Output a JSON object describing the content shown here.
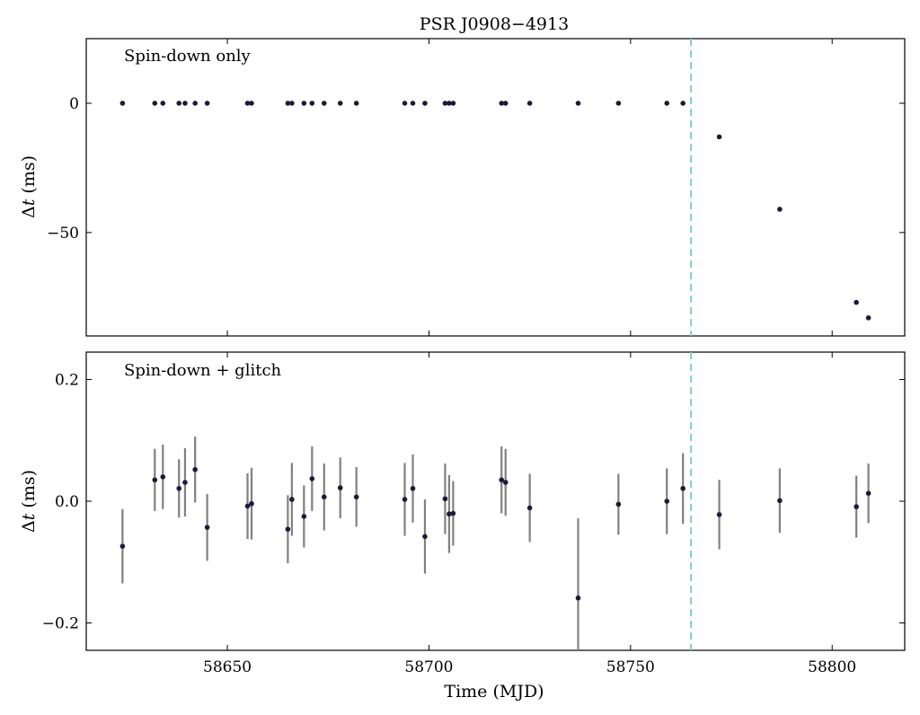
{
  "title": "PSR J0908−4913",
  "colors": {
    "points": "#1a1a3a",
    "errorbars": "#808080",
    "glitch_line": "#7fd1b9"
  },
  "chart_data": [
    {
      "type": "scatter",
      "annotation": "Spin-down only",
      "ylabel_symbol": "Δ",
      "ylabel_var": "t",
      "ylabel_unit": " (ms)",
      "xlim": [
        58615,
        58818
      ],
      "ylim": [
        -90,
        25
      ],
      "yticks": [
        0,
        -50
      ],
      "ytick_labels": [
        "0",
        "−50"
      ],
      "xticks": [
        58650,
        58700,
        58750,
        58800
      ],
      "vline_x": 58765,
      "x": [
        58624,
        58632,
        58634,
        58638,
        58639.5,
        58642,
        58645,
        58655,
        58656,
        58665,
        58666,
        58669,
        58671,
        58674,
        58678,
        58682,
        58694,
        58696,
        58699,
        58704,
        58705,
        58706,
        58718,
        58719,
        58725,
        58737,
        58747,
        58759,
        58763,
        58772,
        58787,
        58806,
        58809
      ],
      "y": [
        0,
        0,
        0,
        0,
        0,
        0,
        0,
        0,
        0,
        0,
        0,
        0,
        0,
        0,
        0,
        0,
        0,
        0,
        0,
        0,
        0,
        0,
        0,
        0,
        0,
        0,
        0,
        0,
        0,
        -13,
        -41,
        -77,
        -83
      ]
    },
    {
      "type": "scatter",
      "annotation": "Spin-down + glitch",
      "ylabel_symbol": "Δ",
      "ylabel_var": "t",
      "ylabel_unit": " (ms)",
      "xlabel": "Time (MJD)",
      "xlim": [
        58615,
        58818
      ],
      "ylim": [
        -0.245,
        0.245
      ],
      "yticks": [
        0.2,
        0.0,
        -0.2
      ],
      "ytick_labels": [
        "0.2",
        "0.0",
        "−0.2"
      ],
      "xticks": [
        58650,
        58700,
        58750,
        58800
      ],
      "xtick_labels": [
        "58650",
        "58700",
        "58750",
        "58800"
      ],
      "vline_x": 58765,
      "x": [
        58624,
        58632,
        58634,
        58638,
        58639.5,
        58642,
        58645,
        58655,
        58656,
        58665,
        58666,
        58669,
        58671,
        58674,
        58678,
        58682,
        58694,
        58696,
        58699,
        58704,
        58705,
        58706,
        58718,
        58719,
        58725,
        58737,
        58747,
        58759,
        58763,
        58772,
        58787,
        58806,
        58809
      ],
      "y": [
        -0.074,
        0.035,
        0.04,
        0.021,
        0.031,
        0.052,
        -0.043,
        -0.008,
        -0.004,
        -0.046,
        0.003,
        -0.025,
        0.037,
        0.007,
        0.022,
        0.007,
        0.003,
        0.021,
        -0.058,
        0.004,
        -0.021,
        -0.02,
        0.035,
        0.031,
        -0.011,
        -0.159,
        -0.005,
        0.0,
        0.021,
        -0.022,
        0.001,
        -0.009,
        0.013
      ],
      "yerr": [
        0.061,
        0.051,
        0.053,
        0.048,
        0.056,
        0.054,
        0.055,
        0.054,
        0.059,
        0.056,
        0.06,
        0.051,
        0.053,
        0.055,
        0.05,
        0.049,
        0.06,
        0.056,
        0.061,
        0.058,
        0.064,
        0.053,
        0.055,
        0.055,
        0.056,
        0.131,
        0.05,
        0.054,
        0.058,
        0.057,
        0.053,
        0.051,
        0.049
      ]
    }
  ]
}
